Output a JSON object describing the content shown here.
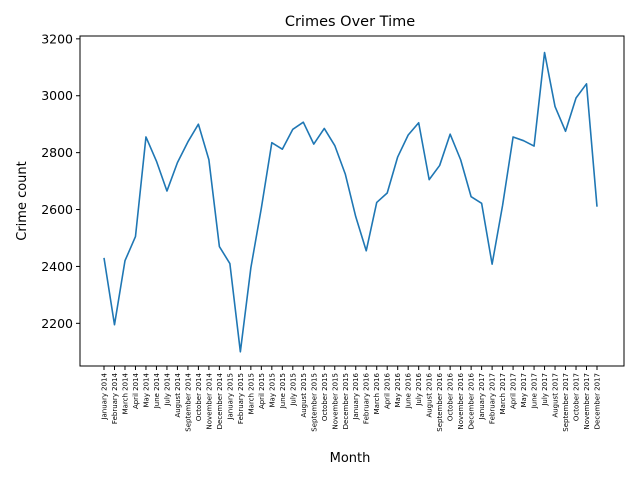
{
  "chart_data": {
    "type": "line",
    "title": "Crimes Over Time",
    "xlabel": "Month",
    "ylabel": "Crime count",
    "ylim": [
      2050,
      3210
    ],
    "yticks": [
      2200,
      2400,
      2600,
      2800,
      3000,
      3200
    ],
    "grid": false,
    "series": [
      {
        "color": "#1f77b4",
        "values": [
          2430,
          2195,
          2420,
          2505,
          2855,
          2770,
          2665,
          2765,
          2838,
          2900,
          2775,
          2470,
          2410,
          2100,
          2395,
          2605,
          2835,
          2812,
          2882,
          2907,
          2830,
          2885,
          2825,
          2725,
          2575,
          2455,
          2625,
          2658,
          2785,
          2862,
          2905,
          2705,
          2755,
          2865,
          2775,
          2645,
          2622,
          2408,
          2615,
          2855,
          2842,
          2823,
          3152,
          2962,
          2875,
          2992,
          3042,
          2610
        ]
      }
    ],
    "categories": [
      "January 2014",
      "February 2014",
      "March 2014",
      "April 2014",
      "May 2014",
      "June 2014",
      "July 2014",
      "August 2014",
      "September 2014",
      "October 2014",
      "November 2014",
      "December 2014",
      "January 2015",
      "February 2015",
      "March 2015",
      "April 2015",
      "May 2015",
      "June 2015",
      "July 2015",
      "August 2015",
      "September 2015",
      "October 2015",
      "November 2015",
      "December 2015",
      "January 2016",
      "February 2016",
      "March 2016",
      "April 2016",
      "May 2016",
      "June 2016",
      "July 2016",
      "August 2016",
      "September 2016",
      "October 2016",
      "November 2016",
      "December 2016",
      "January 2017",
      "February 2017",
      "March 2017",
      "April 2017",
      "May 2017",
      "June 2017",
      "July 2017",
      "August 2017",
      "September 2017",
      "October 2017",
      "November 2017",
      "December 2017"
    ]
  }
}
